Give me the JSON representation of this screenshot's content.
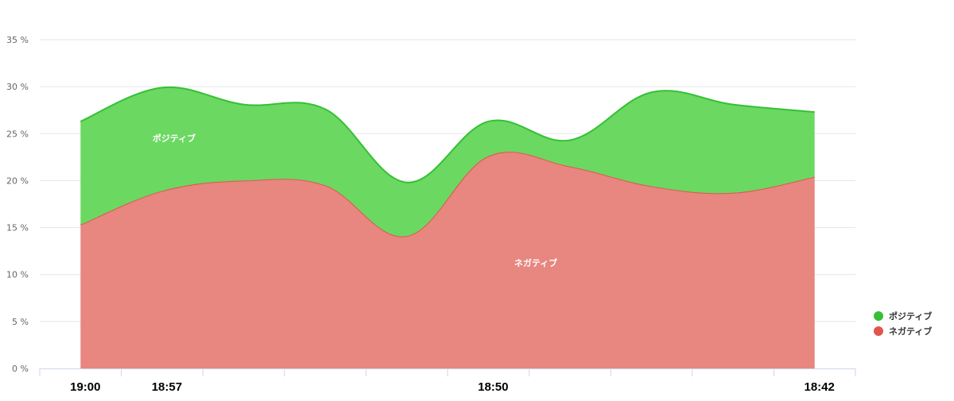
{
  "chart_data": {
    "type": "area",
    "stacked": true,
    "categories": [
      "19:00",
      "18:57",
      "",
      "",
      "",
      "18:50",
      "",
      "",
      "",
      "18:42"
    ],
    "x_tick_labels": [
      {
        "index": 0,
        "label": "19:00"
      },
      {
        "index": 1,
        "label": "18:57"
      },
      {
        "index": 5,
        "label": "18:50"
      },
      {
        "index": 9,
        "label": "18:42"
      }
    ],
    "series": [
      {
        "name": "ネガティブ",
        "color": "#e0564f",
        "fill": "#e88680",
        "values": [
          15.3,
          18.9,
          20.0,
          19.5,
          14.1,
          22.6,
          21.5,
          19.4,
          18.7,
          20.4
        ]
      },
      {
        "name": "ポジティブ",
        "color": "#35c035",
        "fill": "#6bd862",
        "values": [
          11.0,
          11.0,
          8.1,
          8.1,
          5.7,
          3.7,
          2.8,
          10.0,
          9.4,
          6.9
        ]
      }
    ],
    "in_chart_labels": [
      "ポジティブ",
      "ネガティブ"
    ],
    "y_ticks": [
      "0 %",
      "5 %",
      "10 %",
      "15 %",
      "20 %",
      "25 %",
      "30 %",
      "35 %"
    ],
    "ylim": [
      0,
      35
    ],
    "grid": true,
    "legend": {
      "position": "right",
      "items": [
        "ポジティブ",
        "ネガティブ"
      ]
    }
  }
}
